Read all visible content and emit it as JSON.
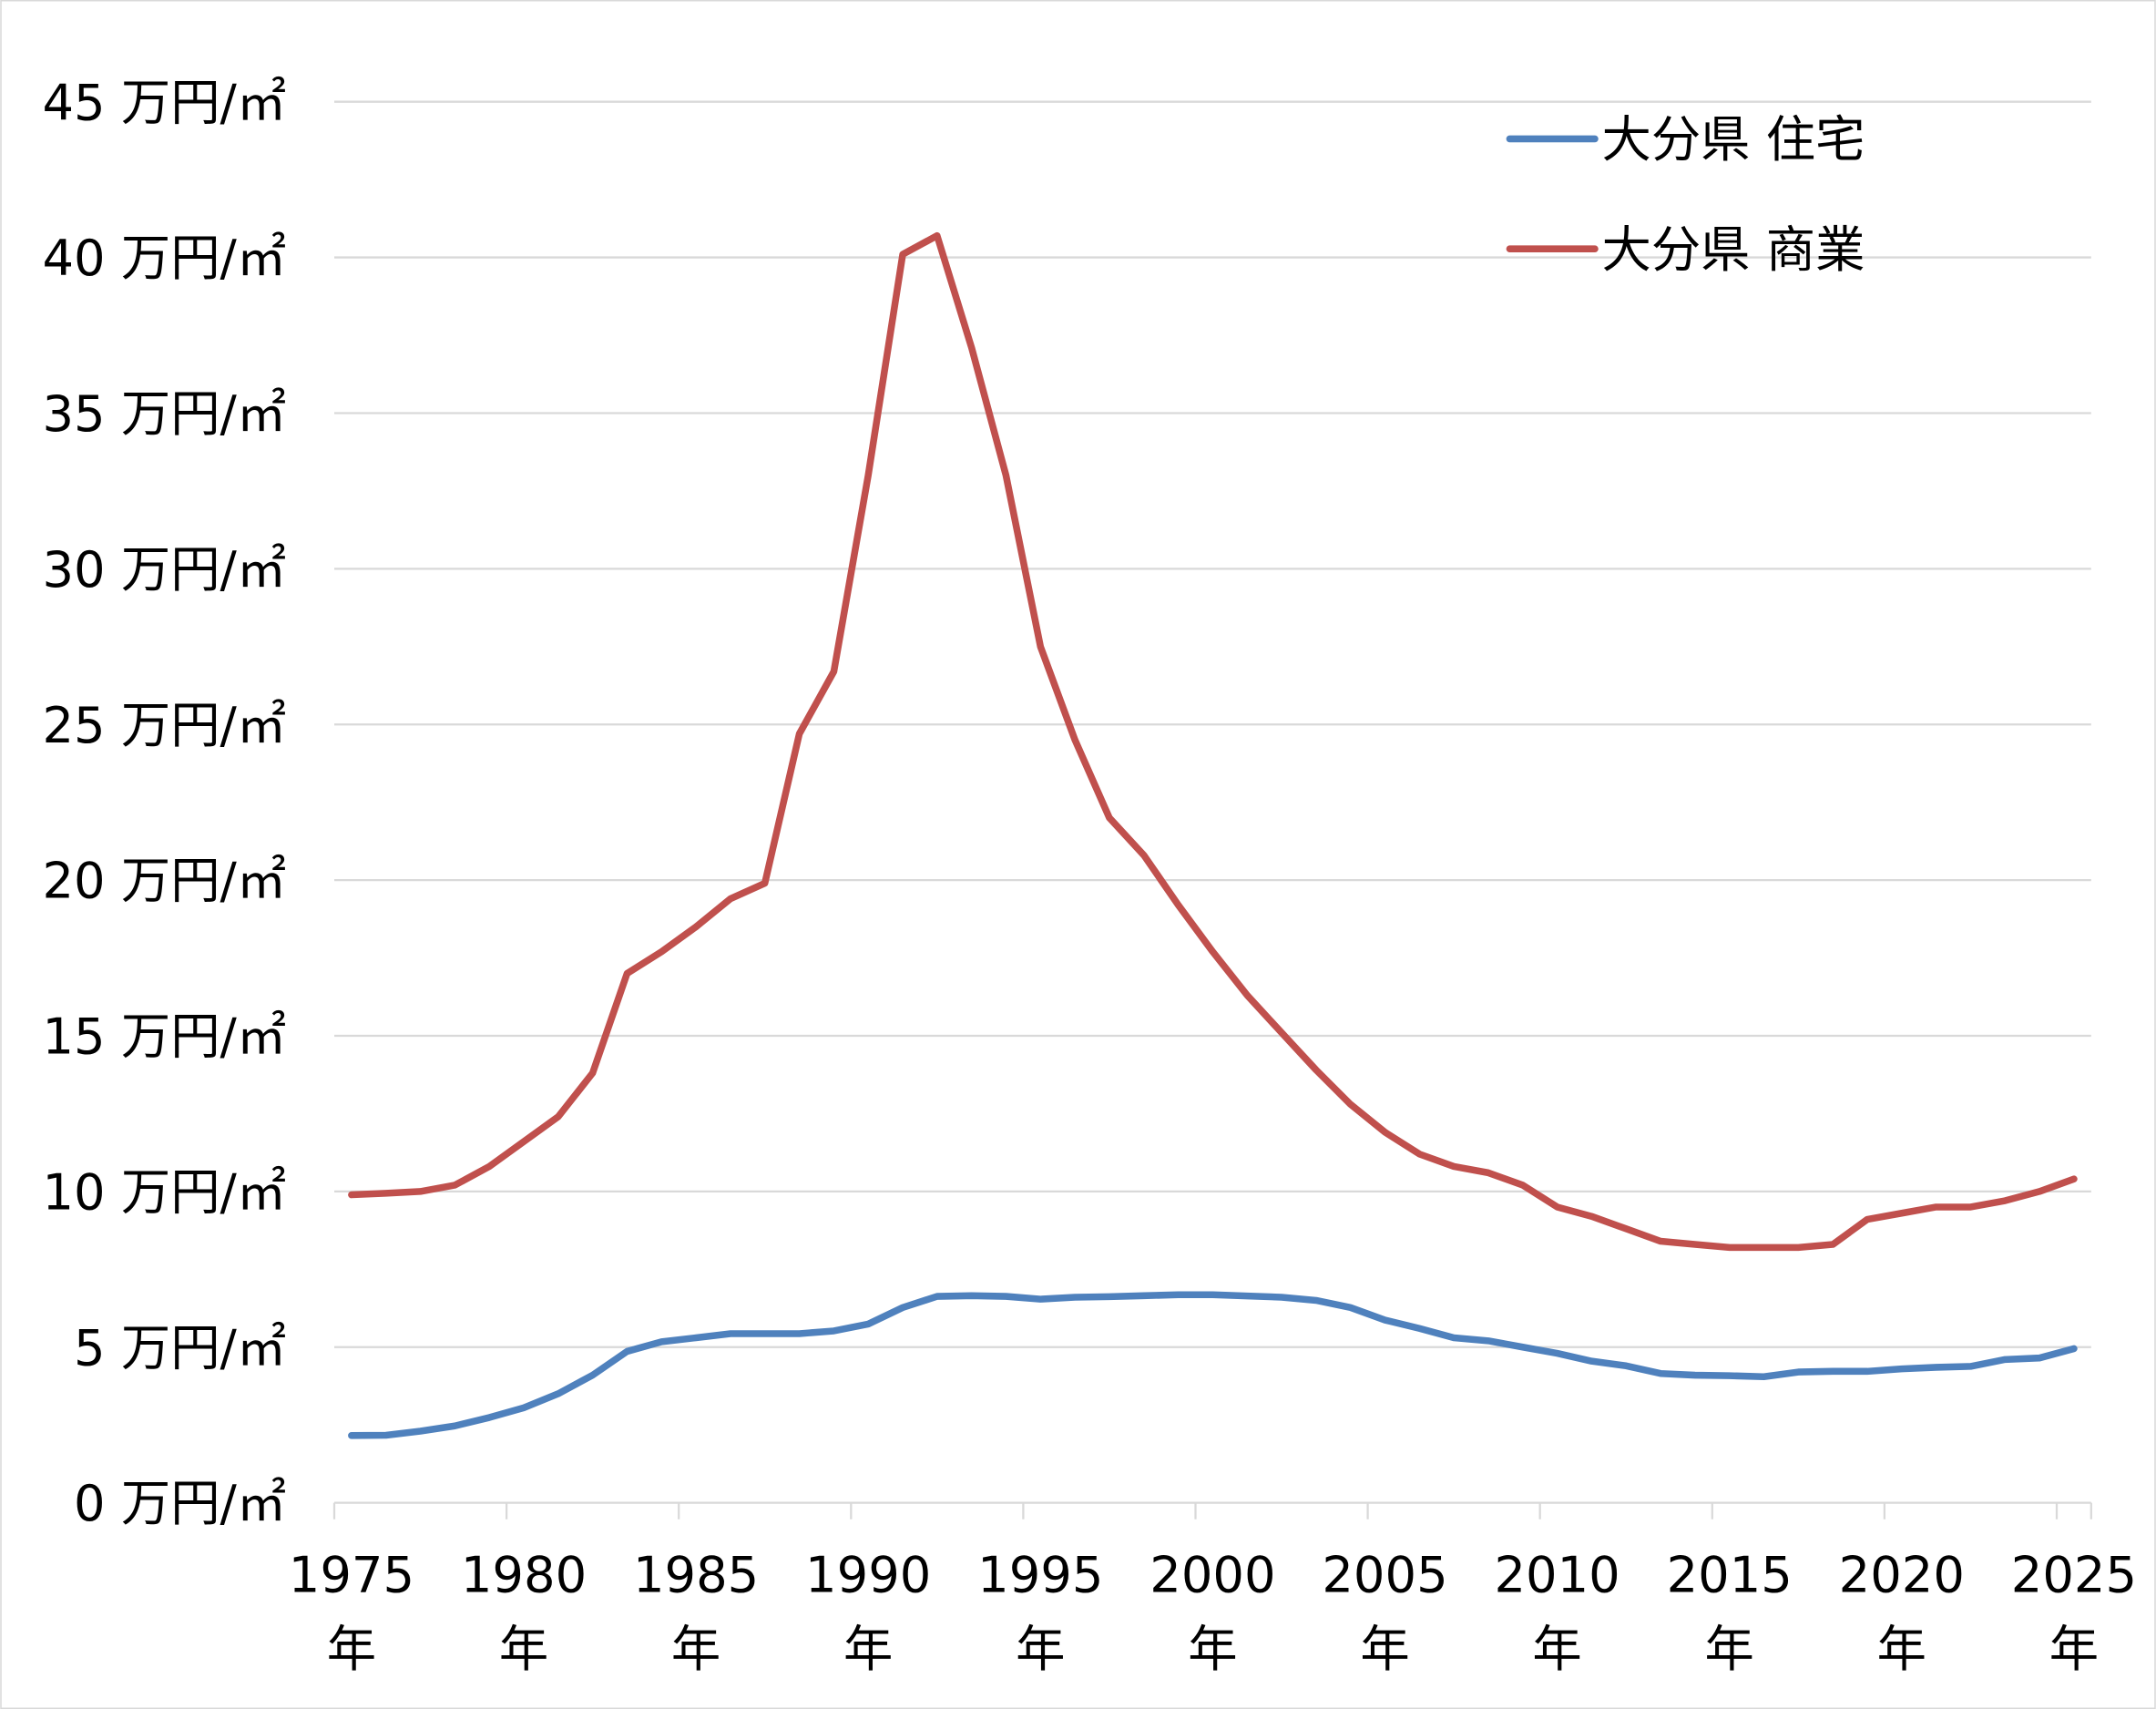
{
  "chart_data": {
    "type": "line",
    "title": "",
    "xlabel": "",
    "ylabel": "",
    "ylim": [
      0,
      45
    ],
    "y_ticks": [
      0,
      5,
      10,
      15,
      20,
      25,
      30,
      35,
      40,
      45
    ],
    "y_tick_suffix": " 万円/㎡",
    "x_tick_labels": [
      "1975",
      "1980",
      "1985",
      "1990",
      "1995",
      "2000",
      "2005",
      "2010",
      "2015",
      "2020",
      "2025"
    ],
    "x_tick_suffix": "年",
    "grid": true,
    "legend_position": "top-right",
    "x": [
      1975,
      1976,
      1977,
      1978,
      1979,
      1980,
      1981,
      1982,
      1983,
      1984,
      1985,
      1986,
      1987,
      1988,
      1989,
      1990,
      1991,
      1992,
      1993,
      1994,
      1995,
      1996,
      1997,
      1998,
      1999,
      2000,
      2001,
      2002,
      2003,
      2004,
      2005,
      2006,
      2007,
      2008,
      2009,
      2010,
      2011,
      2012,
      2013,
      2014,
      2015,
      2016,
      2017,
      2018,
      2019,
      2020,
      2021,
      2022,
      2023,
      2024,
      2025
    ],
    "series": [
      {
        "name": "大分県 住宅",
        "color": "#4F81BD",
        "values": [
          2.16,
          2.17,
          2.3,
          2.47,
          2.74,
          3.05,
          3.5,
          4.1,
          4.86,
          5.17,
          5.3,
          5.43,
          5.43,
          5.43,
          5.52,
          5.74,
          6.27,
          6.63,
          6.65,
          6.63,
          6.54,
          6.6,
          6.62,
          6.65,
          6.68,
          6.68,
          6.64,
          6.6,
          6.5,
          6.27,
          5.87,
          5.6,
          5.3,
          5.2,
          5.0,
          4.8,
          4.55,
          4.4,
          4.15,
          4.1,
          4.08,
          4.05,
          4.2,
          4.22,
          4.22,
          4.3,
          4.35,
          4.38,
          4.6,
          4.65,
          4.95
        ]
      },
      {
        "name": "大分県 商業",
        "color": "#C0504D",
        "values": [
          9.89,
          9.94,
          10.0,
          10.2,
          10.8,
          11.6,
          12.4,
          13.8,
          17.0,
          17.7,
          18.5,
          19.4,
          19.9,
          24.7,
          26.7,
          33.0,
          40.1,
          40.7,
          37.1,
          33.0,
          27.5,
          24.5,
          22.0,
          20.8,
          19.2,
          17.7,
          16.3,
          15.1,
          13.9,
          12.8,
          11.9,
          11.2,
          10.8,
          10.6,
          10.2,
          9.5,
          9.2,
          8.8,
          8.4,
          8.3,
          8.2,
          8.2,
          8.2,
          8.3,
          9.1,
          9.3,
          9.5,
          9.5,
          9.7,
          10.0,
          10.4
        ]
      }
    ]
  }
}
